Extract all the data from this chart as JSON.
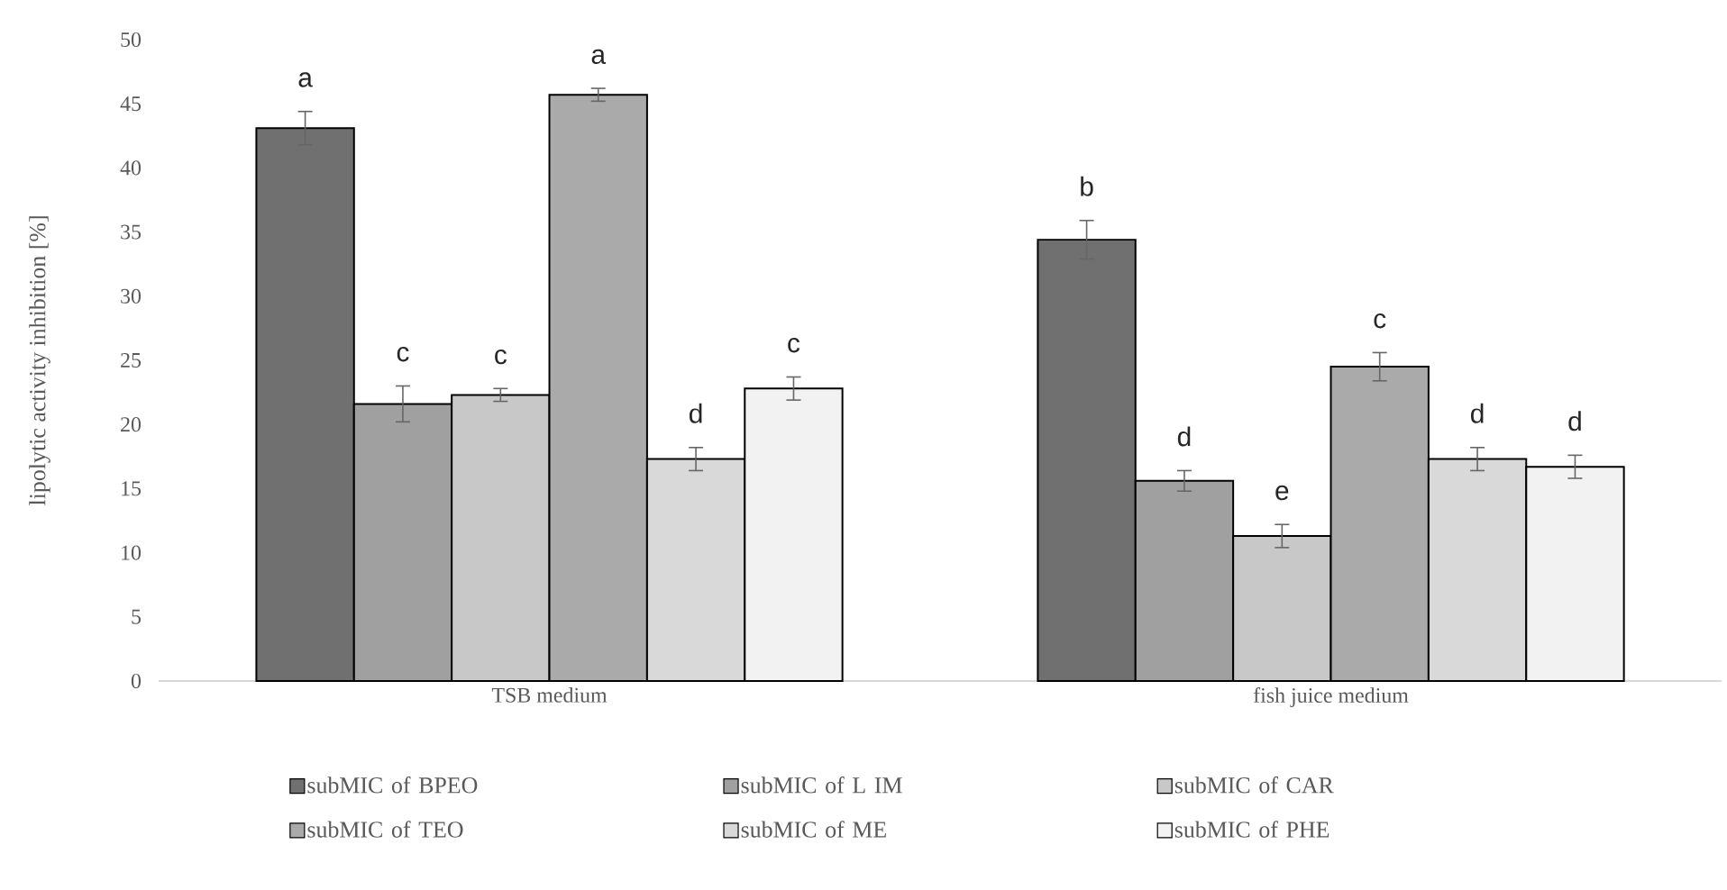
{
  "chart_data": {
    "type": "bar",
    "ylabel": "lipolytic activity inhibition [%]",
    "categories": [
      "TSB medium",
      "fish juice medium"
    ],
    "series": [
      {
        "name": "subMIC of BPEO",
        "color": "#707070",
        "values": [
          43.1,
          34.4
        ],
        "errors": [
          1.3,
          1.5
        ]
      },
      {
        "name": "subMIC of L IM",
        "color": "#a0a0a0",
        "values": [
          21.6,
          15.6
        ],
        "errors": [
          1.4,
          0.8
        ]
      },
      {
        "name": "subMIC of CAR",
        "color": "#c8c8c8",
        "values": [
          22.3,
          11.3
        ],
        "errors": [
          0.5,
          0.9
        ]
      },
      {
        "name": "subMIC of TEO",
        "color": "#aaaaaa",
        "values": [
          45.7,
          24.5
        ],
        "errors": [
          0.5,
          1.1
        ]
      },
      {
        "name": "subMIC of ME",
        "color": "#d9d9d9",
        "values": [
          17.3,
          17.3
        ],
        "errors": [
          0.9,
          0.9
        ]
      },
      {
        "name": "subMIC of PHE",
        "color": "#f2f2f2",
        "values": [
          22.8,
          16.7
        ],
        "errors": [
          0.9,
          0.9
        ]
      }
    ],
    "ylim": [
      0,
      50
    ],
    "yticks": [
      0,
      5,
      10,
      15,
      20,
      25,
      30,
      35,
      40,
      45,
      50
    ],
    "grid": false,
    "legend": "bottom",
    "annotations": [
      "a",
      "c",
      "c",
      "a",
      "d",
      "c",
      "b",
      "d",
      "e",
      "c",
      "d",
      "d"
    ]
  }
}
